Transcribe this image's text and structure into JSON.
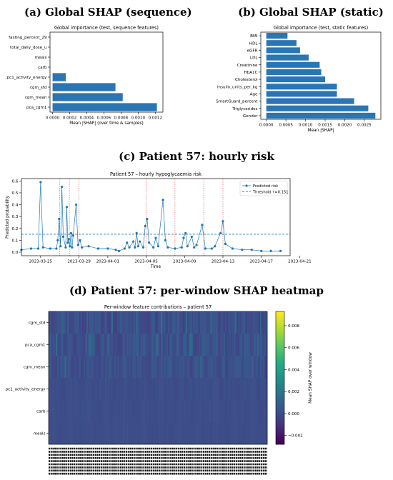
{
  "panels": {
    "a": "(a) Global SHAP (sequence)",
    "b": "(b) Global SHAP (static)",
    "c": "(c) Patient 57: hourly risk",
    "d": "(d) Patient 57: per-window SHAP heatmap"
  },
  "chart_data": [
    {
      "type": "bar",
      "orientation": "horizontal",
      "title": "Global importance (test, sequence features)",
      "xlabel": "Mean |SHAP| (over time & samples)",
      "ylabel": "",
      "categories": [
        "fasting_percent_29",
        "total_daily_dose_u",
        "meals",
        "carb",
        "pc1_activity_energy",
        "cgm_std",
        "cgm_mean",
        "pca_cgm1"
      ],
      "values": [
        0.0,
        0.0,
        0.0,
        0.0,
        0.000155,
        0.000735,
        0.00082,
        0.00122
      ],
      "xlim": [
        -3e-05,
        0.00129
      ],
      "xticks": [
        0,
        0.0002,
        0.0004,
        0.0006,
        0.0008,
        0.001,
        0.0012
      ],
      "xtick_labels": [
        "0.0000",
        "0.0002",
        "0.0004",
        "0.0006",
        "0.0008",
        "0.0010",
        "0.0012"
      ],
      "color": "#2a75b3"
    },
    {
      "type": "bar",
      "orientation": "horizontal",
      "title": "Global importance (test, static features)",
      "xlabel": "Mean |SHAP|",
      "ylabel": "",
      "categories": [
        "BMI",
        "HDL",
        "eGFR",
        "LDL",
        "Creatinine",
        "HbA1C",
        "Cholesterol",
        "Insulin_units_per_kg",
        "Age",
        "SmartGuard_percent",
        "Triglycerides",
        "Gender"
      ],
      "values": [
        0.00054,
        0.00077,
        0.00086,
        0.00108,
        0.00136,
        0.0014,
        0.0015,
        0.0018,
        0.0018,
        0.00224,
        0.0026,
        0.00278
      ],
      "xlim": [
        -0.00014,
        0.00292
      ],
      "xticks": [
        0,
        0.0005,
        0.001,
        0.0015,
        0.002,
        0.0025
      ],
      "xtick_labels": [
        "0.0000",
        "0.0005",
        "0.0010",
        "0.0015",
        "0.0020",
        "0.0025"
      ],
      "color": "#2a75b3"
    },
    {
      "type": "line",
      "title": "Patient 57 – hourly hypoglycaemia risk",
      "xlabel": "Time",
      "ylabel": "Predicted probability",
      "x_range": [
        "2023-03-23",
        "2023-04-20"
      ],
      "ylim": [
        -0.03,
        0.62
      ],
      "yticks": [
        0,
        0.1,
        0.2,
        0.3,
        0.4,
        0.5,
        0.6
      ],
      "ytick_labels": [
        "0.0",
        "0.1",
        "0.2",
        "0.3",
        "0.4",
        "0.5",
        "0.6"
      ],
      "xticks": [
        "2023-03-25",
        "2023-03-29",
        "2023-04-01",
        "2023-04-05",
        "2023-04-09",
        "2023-04-13",
        "2023-04-17",
        "2023-04-21"
      ],
      "xtick_labels": [
        "2023-03-25",
        "2023-03-29",
        "2023-04-01",
        "2023-04-05",
        "2023-04-09",
        "2023-04-13",
        "2023-04-17",
        "2023-04-21"
      ],
      "series": [
        {
          "name": "Predicted risk",
          "color": "#1f77b4",
          "points": [
            [
              "2023-03-23",
              0.02
            ],
            [
              "2023-03-24",
              0.03
            ],
            [
              "2023-03-25",
              0.03
            ],
            [
              "2023-03-25",
              0.59
            ],
            [
              "2023-03-25",
              0.04
            ],
            [
              "2023-03-26",
              0.03
            ],
            [
              "2023-03-27",
              0.03
            ],
            [
              "2023-03-27",
              0.1
            ],
            [
              "2023-03-27",
              0.28
            ],
            [
              "2023-03-27",
              0.05
            ],
            [
              "2023-03-27",
              0.55
            ],
            [
              "2023-03-27",
              0.13
            ],
            [
              "2023-03-28",
              0.04
            ],
            [
              "2023-03-28",
              0.38
            ],
            [
              "2023-03-28",
              0.08
            ],
            [
              "2023-03-28",
              0.11
            ],
            [
              "2023-03-28",
              0.05
            ],
            [
              "2023-03-28",
              0.16
            ],
            [
              "2023-03-28",
              0.04
            ],
            [
              "2023-03-28",
              0.14
            ],
            [
              "2023-03-29",
              0.4
            ],
            [
              "2023-03-29",
              0.06
            ],
            [
              "2023-03-29",
              0.1
            ],
            [
              "2023-03-29",
              0.04
            ],
            [
              "2023-03-30",
              0.05
            ],
            [
              "2023-03-31",
              0.03
            ],
            [
              "2023-04-01",
              0.03
            ],
            [
              "2023-04-02",
              0.02
            ],
            [
              "2023-04-02",
              0.01
            ],
            [
              "2023-04-03",
              0.03
            ],
            [
              "2023-04-03",
              0.08
            ],
            [
              "2023-04-03",
              0.04
            ],
            [
              "2023-04-04",
              0.09
            ],
            [
              "2023-04-04",
              0.04
            ],
            [
              "2023-04-04",
              0.16
            ],
            [
              "2023-04-04",
              0.05
            ],
            [
              "2023-04-04",
              0.09
            ],
            [
              "2023-04-05",
              0.04
            ],
            [
              "2023-04-05",
              0.22
            ],
            [
              "2023-04-05",
              0.28
            ],
            [
              "2023-04-05",
              0.08
            ],
            [
              "2023-04-06",
              0.04
            ],
            [
              "2023-04-06",
              0.12
            ],
            [
              "2023-04-06",
              0.05
            ],
            [
              "2023-04-07",
              0.44
            ],
            [
              "2023-04-07",
              0.1
            ],
            [
              "2023-04-07",
              0.04
            ],
            [
              "2023-04-08",
              0.03
            ],
            [
              "2023-04-09",
              0.04
            ],
            [
              "2023-04-09",
              0.12
            ],
            [
              "2023-04-09",
              0.16
            ],
            [
              "2023-04-09",
              0.05
            ],
            [
              "2023-04-10",
              0.13
            ],
            [
              "2023-04-10",
              0.04
            ],
            [
              "2023-04-10",
              0.06
            ],
            [
              "2023-04-11",
              0.23
            ],
            [
              "2023-04-11",
              0.03
            ],
            [
              "2023-04-12",
              0.03
            ],
            [
              "2023-04-12",
              0.05
            ],
            [
              "2023-04-13",
              0.16
            ],
            [
              "2023-04-13",
              0.26
            ],
            [
              "2023-04-13",
              0.07
            ],
            [
              "2023-04-14",
              0.03
            ],
            [
              "2023-04-15",
              0.02
            ],
            [
              "2023-04-16",
              0.02
            ],
            [
              "2023-04-17",
              0.01
            ],
            [
              "2023-04-18",
              0.01
            ],
            [
              "2023-04-19",
              0.01
            ]
          ]
        },
        {
          "name": "Threshold τ=0.151",
          "color": "#1f77b4",
          "value": 0.151
        }
      ],
      "event_lines": [
        "2023-03-27",
        "2023-03-28",
        "2023-03-29",
        "2023-04-05",
        "2023-04-08",
        "2023-04-11",
        "2023-04-13"
      ],
      "legend_position": "top-right"
    },
    {
      "type": "heatmap",
      "title": "Per-window feature contributions – patient 57",
      "rows": [
        "cgm_std",
        "pca_cgm1",
        "cgm_mean",
        "pc1_activity_energy",
        "carb",
        "meals"
      ],
      "colorbar_label": "Mean SHAP over window",
      "colorbar_range": [
        -0.0028,
        0.0093
      ],
      "colorbar_ticks": [
        -0.002,
        0,
        0.002,
        0.004,
        0.006,
        0.008
      ],
      "colorbar_tick_labels": [
        "−0.002",
        "0.000",
        "0.002",
        "0.004",
        "0.006",
        "0.008"
      ],
      "colormap": "viridis"
    }
  ]
}
